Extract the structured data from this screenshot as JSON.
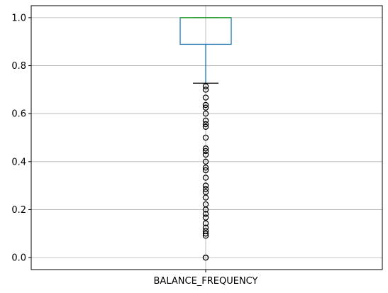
{
  "chart_data": {
    "type": "boxplot",
    "title": "",
    "xlabel": "",
    "ylabel": "",
    "categories": [
      "BALANCE_FREQUENCY"
    ],
    "ylim": [
      -0.05,
      1.05
    ],
    "yticks": [
      0.0,
      0.2,
      0.4,
      0.6,
      0.8,
      1.0
    ],
    "ytick_labels": [
      "0.0",
      "0.2",
      "0.4",
      "0.6",
      "0.8",
      "1.0"
    ],
    "grid": true,
    "box": {
      "whisker_low": 0.727,
      "q1": 0.889,
      "median": 1.0,
      "q3": 1.0,
      "whisker_high": 1.0
    },
    "outliers": [
      0.0,
      0.0,
      0.091,
      0.1,
      0.111,
      0.125,
      0.143,
      0.167,
      0.182,
      0.2,
      0.222,
      0.25,
      0.273,
      0.286,
      0.3,
      0.333,
      0.364,
      0.375,
      0.4,
      0.429,
      0.444,
      0.455,
      0.5,
      0.545,
      0.556,
      0.571,
      0.6,
      0.625,
      0.636,
      0.667,
      0.7,
      0.714
    ],
    "colors": {
      "box": "#1f77b4",
      "median": "#2ca02c",
      "grid": "#b0b0b0",
      "cap": "#000000",
      "outlier": "#000000"
    }
  }
}
